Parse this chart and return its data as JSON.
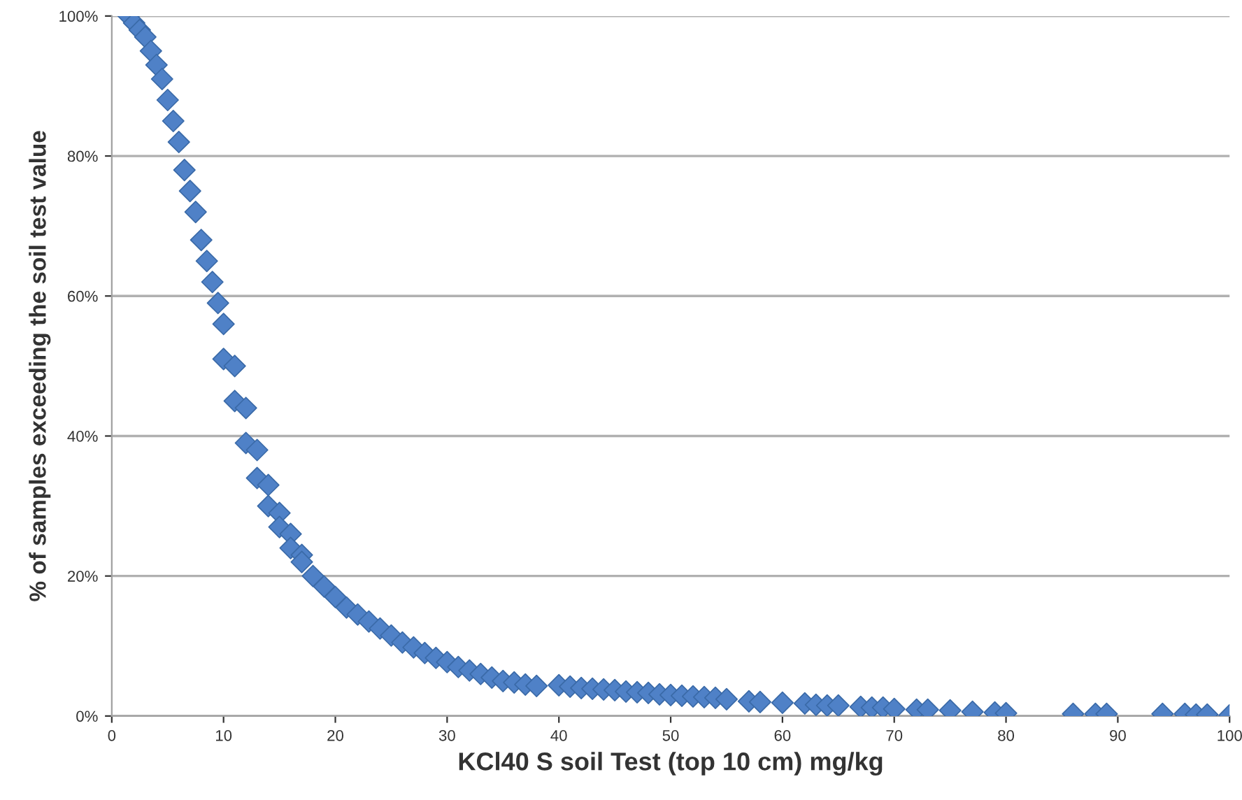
{
  "chart_data": {
    "type": "scatter",
    "xlabel": "KCl40 S soil Test (top 10 cm) mg/kg",
    "ylabel": "% of samples exceeding the soil test value",
    "x": [
      1.5,
      2,
      2.5,
      3,
      3.5,
      4,
      4.5,
      5,
      5.5,
      6,
      6.5,
      7,
      7.5,
      8,
      8.5,
      9,
      9.5,
      10,
      10,
      11,
      11,
      12,
      12,
      13,
      13,
      14,
      14,
      15,
      15,
      16,
      16,
      17,
      17,
      18,
      19,
      20,
      21,
      22,
      23,
      24,
      25,
      26,
      27,
      28,
      29,
      30,
      31,
      32,
      33,
      34,
      35,
      36,
      37,
      38,
      40,
      41,
      42,
      43,
      44,
      45,
      46,
      47,
      48,
      49,
      50,
      51,
      52,
      53,
      54,
      55,
      57,
      58,
      60,
      62,
      63,
      64,
      65,
      67,
      68,
      69,
      70,
      72,
      73,
      75,
      77,
      79,
      80,
      86,
      88,
      89,
      94,
      96,
      97,
      98,
      100
    ],
    "series": [
      {
        "color": "#4f81c7",
        "values": [
          100,
          99,
          98,
          97,
          95,
          93,
          91,
          88,
          85,
          82,
          78,
          75,
          72,
          68,
          65,
          62,
          59,
          56,
          51,
          50,
          45,
          44,
          39,
          38,
          34,
          33,
          30,
          29,
          27,
          26,
          24,
          23,
          22,
          20,
          18.5,
          17,
          15.5,
          14.5,
          13.5,
          12.5,
          11.5,
          10.5,
          9.8,
          9,
          8.3,
          7.7,
          7,
          6.5,
          6,
          5.5,
          5,
          4.8,
          4.5,
          4.3,
          4.4,
          4.2,
          4,
          3.9,
          3.8,
          3.7,
          3.5,
          3.4,
          3.3,
          3.1,
          3,
          2.9,
          2.8,
          2.7,
          2.6,
          2.4,
          2.1,
          2,
          1.9,
          1.8,
          1.6,
          1.5,
          1.5,
          1.3,
          1.2,
          1.2,
          1,
          0.9,
          0.9,
          0.8,
          0.6,
          0.5,
          0.4,
          0.3,
          0.3,
          0.3,
          0.3,
          0.3,
          0.2,
          0.2,
          0.1
        ]
      }
    ],
    "xlim": [
      0,
      100
    ],
    "xticks": [
      0,
      10,
      20,
      30,
      40,
      50,
      60,
      70,
      80,
      90,
      100
    ],
    "ylim": [
      0,
      100
    ],
    "yticks": [
      {
        "value": 0,
        "label": "0%"
      },
      {
        "value": 20,
        "label": "20%"
      },
      {
        "value": 40,
        "label": "40%"
      },
      {
        "value": 60,
        "label": "60%"
      },
      {
        "value": 80,
        "label": "80%"
      },
      {
        "value": 100,
        "label": "100%"
      }
    ],
    "grid": "y",
    "marker": "diamond"
  }
}
